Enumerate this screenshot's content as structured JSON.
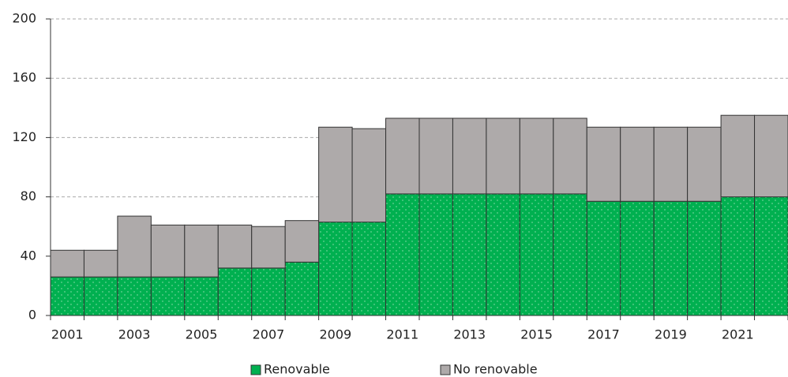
{
  "chart_data": {
    "type": "stacked_bar",
    "categories": [
      "2001",
      null,
      "2003",
      null,
      "2005",
      null,
      "2007",
      null,
      "2009",
      null,
      "2011",
      null,
      "2013",
      null,
      "2015",
      null,
      "2017",
      null,
      "2019",
      null,
      "2021",
      null
    ],
    "series": [
      {
        "name": "Renovable",
        "color": "#00b050",
        "values": [
          26,
          26,
          26,
          26,
          26,
          32,
          32,
          36,
          63,
          63,
          82,
          82,
          82,
          82,
          82,
          82,
          77,
          77,
          77,
          77,
          80,
          80
        ]
      },
      {
        "name": "No renovable",
        "color": "#aeaaaa",
        "values": [
          18,
          18,
          41,
          35,
          35,
          29,
          28,
          28,
          64,
          63,
          51,
          51,
          51,
          51,
          51,
          51,
          50,
          50,
          50,
          50,
          55,
          55
        ]
      }
    ],
    "ylim": [
      0,
      200
    ],
    "yticks": [
      0,
      40,
      80,
      120,
      160,
      200
    ],
    "grid": true
  }
}
